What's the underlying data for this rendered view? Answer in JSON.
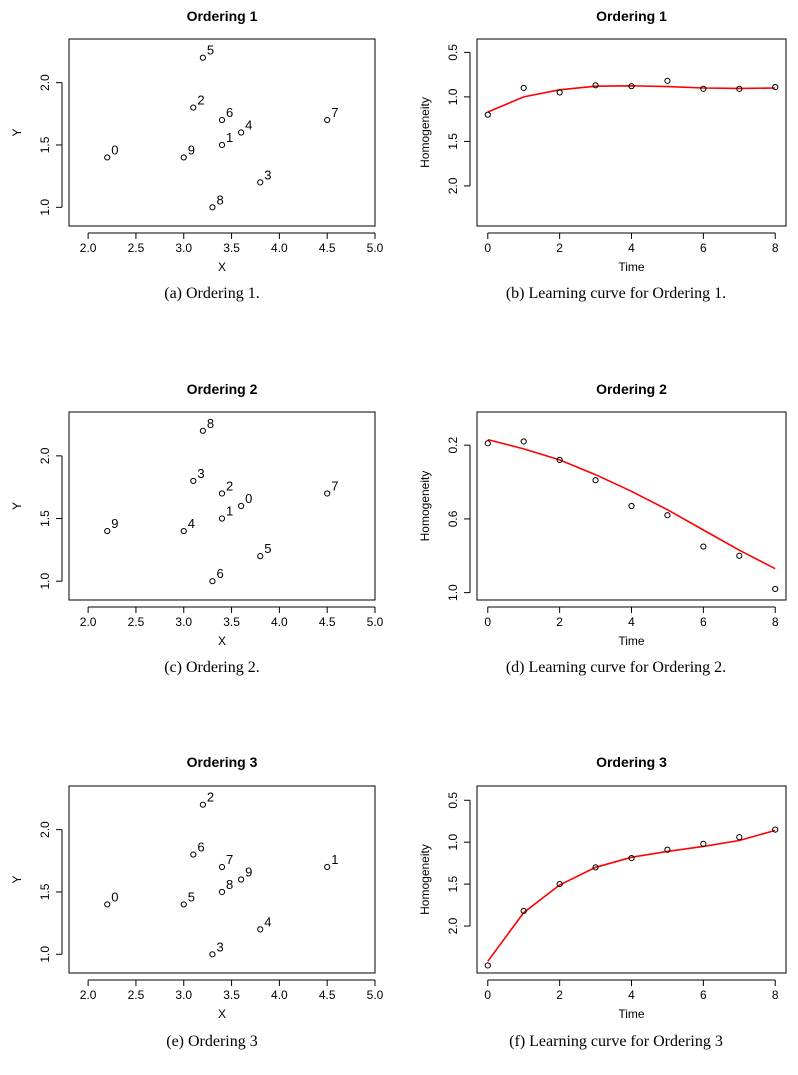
{
  "panels": [
    {
      "caption": "(a) Ordering 1.",
      "chart": {
        "type": "scatter",
        "title": "Ordering 1",
        "xlabel": "X",
        "ylabel": "Y",
        "xlim": [
          1.8,
          5.0
        ],
        "ylim": [
          0.85,
          2.35
        ],
        "xticks": [
          "2.0",
          "2.5",
          "3.0",
          "3.5",
          "4.0",
          "4.5",
          "5.0"
        ],
        "yticks": [
          "1.0",
          "1.5",
          "2.0"
        ],
        "points": [
          {
            "label": "0",
            "x": 2.2,
            "y": 1.4
          },
          {
            "label": "1",
            "x": 3.4,
            "y": 1.5
          },
          {
            "label": "2",
            "x": 3.1,
            "y": 1.8
          },
          {
            "label": "3",
            "x": 3.8,
            "y": 1.2
          },
          {
            "label": "4",
            "x": 3.6,
            "y": 1.6
          },
          {
            "label": "5",
            "x": 3.2,
            "y": 2.2
          },
          {
            "label": "6",
            "x": 3.4,
            "y": 1.7
          },
          {
            "label": "7",
            "x": 4.5,
            "y": 1.7
          },
          {
            "label": "8",
            "x": 3.3,
            "y": 1.0
          },
          {
            "label": "9",
            "x": 3.0,
            "y": 1.4
          }
        ]
      }
    },
    {
      "caption": "(b) Learning curve for Ordering 1.",
      "chart": {
        "type": "line",
        "title": "Ordering 1",
        "xlabel": "Time",
        "ylabel": "Homogeneity",
        "y_reversed": true,
        "xlim": [
          -0.3,
          8.3
        ],
        "ylim": [
          0.35,
          2.45
        ],
        "xticks": [
          "0",
          "2",
          "4",
          "6",
          "8"
        ],
        "yticks": [
          "0.5",
          "1.0",
          "1.5",
          "2.0"
        ],
        "x": [
          0,
          1,
          2,
          3,
          4,
          5,
          6,
          7,
          8
        ],
        "points": [
          1.2,
          0.9,
          0.95,
          0.87,
          0.88,
          0.82,
          0.91,
          0.91,
          0.89
        ],
        "fit": [
          1.17,
          1.0,
          0.92,
          0.88,
          0.875,
          0.885,
          0.9,
          0.905,
          0.9
        ],
        "fit_color": "#ff0000"
      }
    },
    {
      "caption": "(c) Ordering 2.",
      "chart": {
        "type": "scatter",
        "title": "Ordering 2",
        "xlabel": "X",
        "ylabel": "Y",
        "xlim": [
          1.8,
          5.0
        ],
        "ylim": [
          0.85,
          2.35
        ],
        "xticks": [
          "2.0",
          "2.5",
          "3.0",
          "3.5",
          "4.0",
          "4.5",
          "5.0"
        ],
        "yticks": [
          "1.0",
          "1.5",
          "2.0"
        ],
        "points": [
          {
            "label": "9",
            "x": 2.2,
            "y": 1.4
          },
          {
            "label": "1",
            "x": 3.4,
            "y": 1.5
          },
          {
            "label": "3",
            "x": 3.1,
            "y": 1.8
          },
          {
            "label": "5",
            "x": 3.8,
            "y": 1.2
          },
          {
            "label": "0",
            "x": 3.6,
            "y": 1.6
          },
          {
            "label": "8",
            "x": 3.2,
            "y": 2.2
          },
          {
            "label": "2",
            "x": 3.4,
            "y": 1.7
          },
          {
            "label": "7",
            "x": 4.5,
            "y": 1.7
          },
          {
            "label": "6",
            "x": 3.3,
            "y": 1.0
          },
          {
            "label": "4",
            "x": 3.0,
            "y": 1.4
          }
        ]
      }
    },
    {
      "caption": "(d) Learning curve for Ordering 2.",
      "chart": {
        "type": "line",
        "title": "Ordering 2",
        "xlabel": "Time",
        "ylabel": "Homogeneity",
        "y_reversed": true,
        "xlim": [
          -0.3,
          8.3
        ],
        "ylim": [
          0.02,
          1.04
        ],
        "xticks": [
          "0",
          "2",
          "4",
          "6",
          "8"
        ],
        "yticks": [
          "0.2",
          "0.6",
          "1.0"
        ],
        "x": [
          0,
          1,
          2,
          3,
          4,
          5,
          6,
          7,
          8
        ],
        "points": [
          0.19,
          0.18,
          0.28,
          0.39,
          0.53,
          0.58,
          0.75,
          0.8,
          0.98
        ],
        "fit": [
          0.17,
          0.22,
          0.28,
          0.36,
          0.45,
          0.55,
          0.66,
          0.77,
          0.87
        ],
        "fit_color": "#ff0000"
      }
    },
    {
      "caption": "(e) Ordering 3",
      "chart": {
        "type": "scatter",
        "title": "Ordering 3",
        "xlabel": "X",
        "ylabel": "Y",
        "xlim": [
          1.8,
          5.0
        ],
        "ylim": [
          0.85,
          2.35
        ],
        "xticks": [
          "2.0",
          "2.5",
          "3.0",
          "3.5",
          "4.0",
          "4.5",
          "5.0"
        ],
        "yticks": [
          "1.0",
          "1.5",
          "2.0"
        ],
        "points": [
          {
            "label": "0",
            "x": 2.2,
            "y": 1.4
          },
          {
            "label": "8",
            "x": 3.4,
            "y": 1.5
          },
          {
            "label": "6",
            "x": 3.1,
            "y": 1.8
          },
          {
            "label": "4",
            "x": 3.8,
            "y": 1.2
          },
          {
            "label": "9",
            "x": 3.6,
            "y": 1.6
          },
          {
            "label": "2",
            "x": 3.2,
            "y": 2.2
          },
          {
            "label": "7",
            "x": 3.4,
            "y": 1.7
          },
          {
            "label": "1",
            "x": 4.5,
            "y": 1.7
          },
          {
            "label": "3",
            "x": 3.3,
            "y": 1.0
          },
          {
            "label": "5",
            "x": 3.0,
            "y": 1.4
          }
        ]
      }
    },
    {
      "caption": "(f) Learning curve for Ordering 3",
      "chart": {
        "type": "line",
        "title": "Ordering 3",
        "xlabel": "Time",
        "ylabel": "Homogeneity",
        "y_reversed": true,
        "xlim": [
          -0.3,
          8.3
        ],
        "ylim": [
          0.33,
          2.56
        ],
        "xticks": [
          "0",
          "2",
          "4",
          "6",
          "8"
        ],
        "yticks": [
          "0.5",
          "1.0",
          "1.5",
          "2.0"
        ],
        "x": [
          0,
          1,
          2,
          3,
          4,
          5,
          6,
          7,
          8
        ],
        "points": [
          2.47,
          1.82,
          1.5,
          1.3,
          1.19,
          1.09,
          1.02,
          0.94,
          0.85
        ],
        "fit": [
          2.42,
          1.84,
          1.51,
          1.3,
          1.18,
          1.11,
          1.05,
          0.98,
          0.86
        ],
        "fit_color": "#ff0000"
      }
    }
  ]
}
